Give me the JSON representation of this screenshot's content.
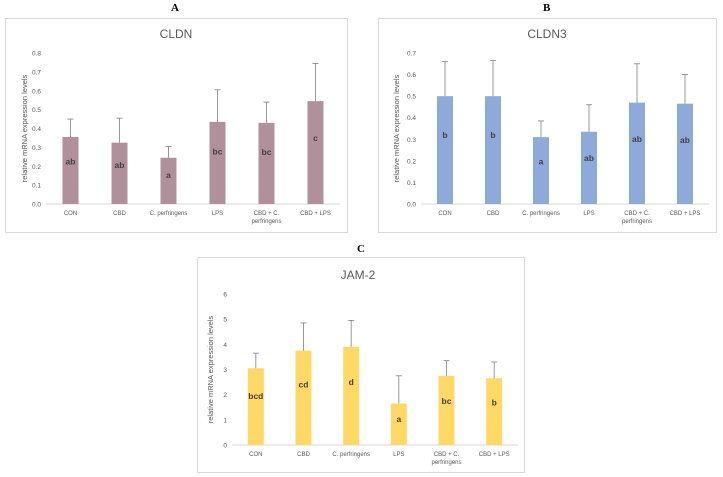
{
  "panels": {
    "a": {
      "letter": "A"
    },
    "b": {
      "letter": "B"
    },
    "c": {
      "letter": "C"
    }
  },
  "chart_data": [
    {
      "type": "bar",
      "id": "a",
      "title": "CLDN",
      "xlabel": "",
      "ylabel": "relative mRNA expression levels",
      "categories": [
        "CON",
        "CBD",
        "C. perfringens",
        "LPS",
        "CBD + C. perfringens",
        "CBD + LPS"
      ],
      "category_lines": [
        [
          "CON"
        ],
        [
          "CBD"
        ],
        [
          "C. perfringens"
        ],
        [
          "LPS"
        ],
        [
          "CBD + C.",
          "perfringens"
        ],
        [
          "CBD + LPS"
        ]
      ],
      "values": [
        0.355,
        0.325,
        0.245,
        0.435,
        0.43,
        0.545
      ],
      "errors": [
        0.095,
        0.13,
        0.06,
        0.17,
        0.11,
        0.2
      ],
      "labels": [
        "ab",
        "ab",
        "a",
        "bc",
        "bc",
        "c"
      ],
      "ylim": [
        0,
        0.8
      ],
      "yticks": [
        "0.0",
        "0.1",
        "0.2",
        "0.3",
        "0.4",
        "0.5",
        "0.6",
        "0.7",
        "0.8"
      ],
      "bar_color": "#b0909b",
      "grid": false
    },
    {
      "type": "bar",
      "id": "b",
      "title": "CLDN3",
      "xlabel": "",
      "ylabel": "relative mRNA expression levels",
      "categories": [
        "CON",
        "CBD",
        "C. perfringens",
        "LPS",
        "CBD + C. perfringens",
        "CBD + LPS"
      ],
      "category_lines": [
        [
          "CON"
        ],
        [
          "CBD"
        ],
        [
          "C. perfringens"
        ],
        [
          "LPS"
        ],
        [
          "CBD + C.",
          "perfringens"
        ],
        [
          "CBD + LPS"
        ]
      ],
      "values": [
        0.5,
        0.5,
        0.31,
        0.335,
        0.47,
        0.465
      ],
      "errors": [
        0.16,
        0.165,
        0.075,
        0.125,
        0.18,
        0.135
      ],
      "labels": [
        "b",
        "b",
        "a",
        "ab",
        "ab",
        "ab"
      ],
      "ylim": [
        0,
        0.7
      ],
      "yticks": [
        "0.0",
        "0.1",
        "0.2",
        "0.3",
        "0.4",
        "0.5",
        "0.6",
        "0.7"
      ],
      "bar_color": "#8eaadb",
      "grid": false
    },
    {
      "type": "bar",
      "id": "c",
      "title": "JAM-2",
      "xlabel": "",
      "ylabel": "relative mRNA expression levels",
      "categories": [
        "CON",
        "CBD",
        "C. perfringens",
        "LPS",
        "CBD + C. perfringens",
        "CBD + LPS"
      ],
      "category_lines": [
        [
          "CON"
        ],
        [
          "CBD"
        ],
        [
          "C. perfringens"
        ],
        [
          "LPS"
        ],
        [
          "CBD + C.",
          "perfringens"
        ],
        [
          "CBD + LPS"
        ]
      ],
      "values": [
        3.05,
        3.75,
        3.9,
        1.65,
        2.75,
        2.65
      ],
      "errors": [
        0.6,
        1.1,
        1.05,
        1.1,
        0.6,
        0.65
      ],
      "labels": [
        "bcd",
        "cd",
        "d",
        "a",
        "bc",
        "b"
      ],
      "ylim": [
        0,
        6
      ],
      "yticks": [
        "0",
        "1",
        "2",
        "3",
        "4",
        "5",
        "6"
      ],
      "bar_color": "#ffd966",
      "grid": false
    }
  ]
}
